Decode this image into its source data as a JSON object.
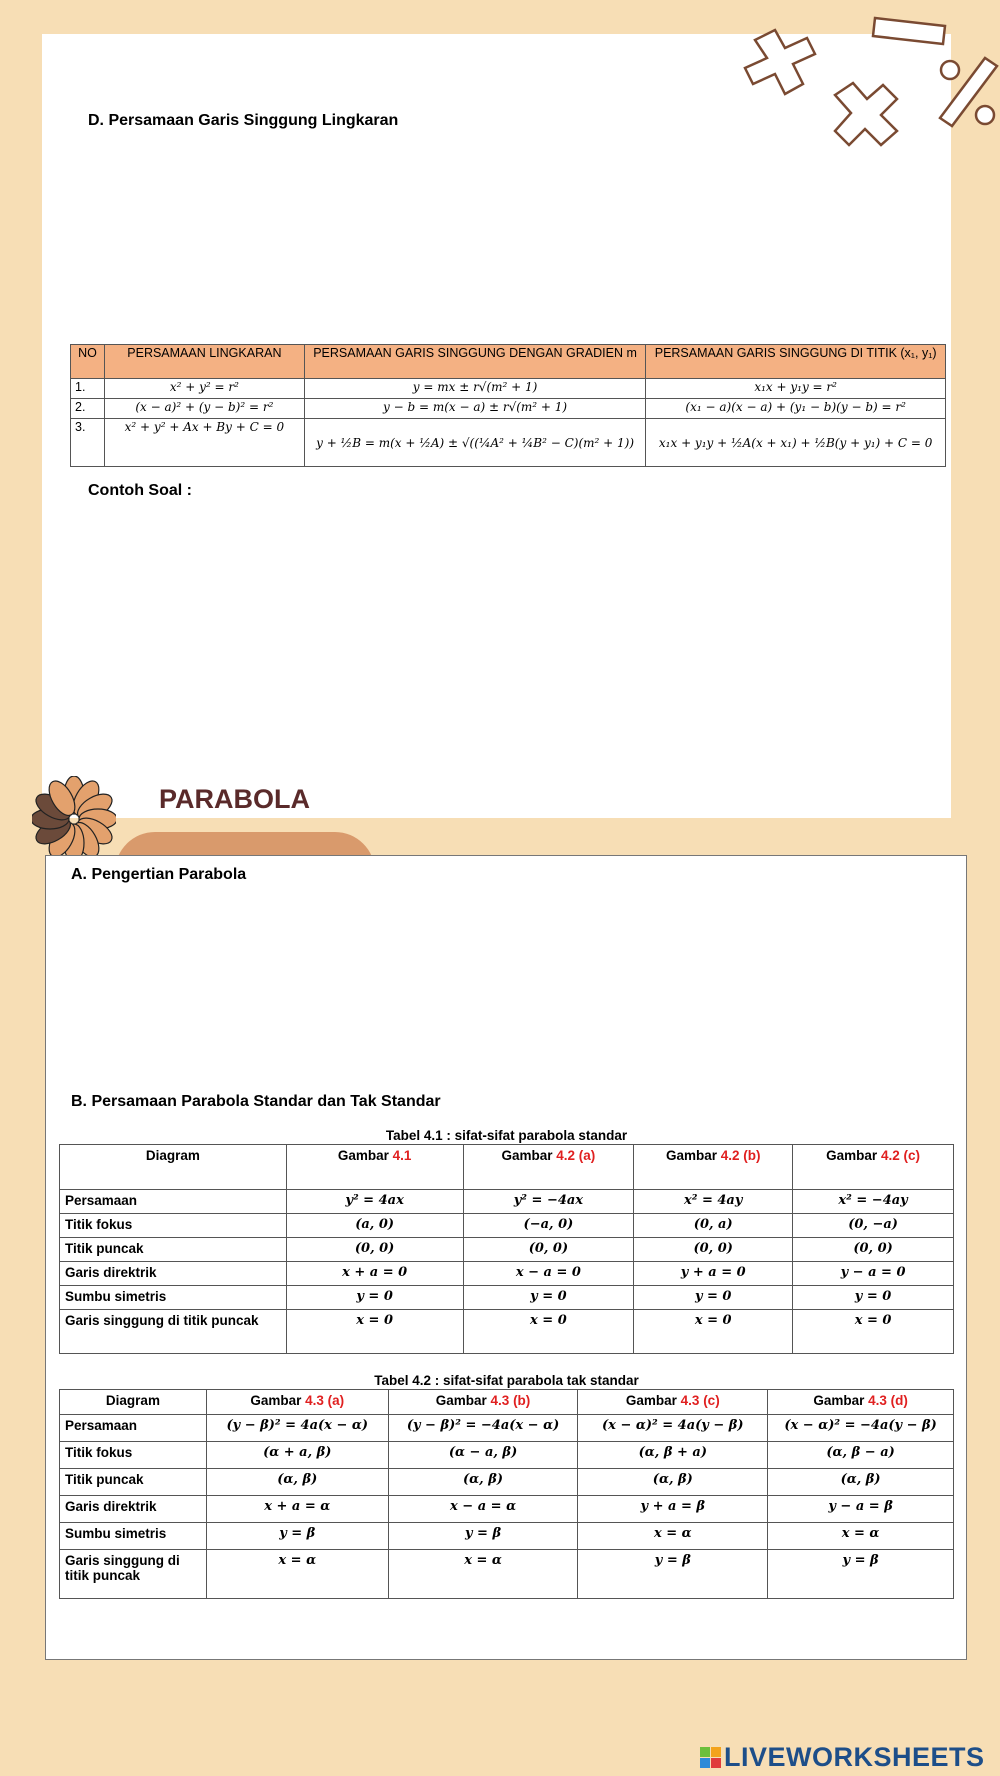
{
  "section_d": {
    "title": "D. Persamaan Garis Singgung Lingkaran",
    "table": {
      "headers": [
        "NO",
        "PERSAMAAN LINGKARAN",
        "PERSAMAAN GARIS SINGGUNG DENGAN GRADIEN m",
        "PERSAMAAN GARIS SINGGUNG DI TITIK (x₁, y₁)"
      ],
      "rows": [
        [
          "1.",
          "x² + y² = r²",
          "y = mx ± r√(m² + 1)",
          "x₁x + y₁y = r²"
        ],
        [
          "2.",
          "(x − a)² + (y − b)² = r²",
          "y − b = m(x − a) ± r√(m² + 1)",
          "(x₁ − a)(x − a) + (y₁ − b)(y − b) = r²"
        ],
        [
          "3.",
          "x² + y² + Ax + By + C = 0",
          "y + ½B = m(x + ½A) ± √((¼A² + ¼B² − C)(m² + 1))",
          "x₁x + y₁y + ½A(x + x₁) + ½B(y + y₁) + C = 0"
        ]
      ]
    },
    "example_label": "Contoh Soal :"
  },
  "parabola": {
    "title": "PARABOLA",
    "section_a": "A.   Pengertian Parabola",
    "section_b": "B.   Persamaan Parabola Standar dan Tak Standar",
    "table1": {
      "caption": "Tabel 4.1 : sifat-sifat parabola standar",
      "headers": [
        {
          "t": "Diagram",
          "r": ""
        },
        {
          "t": "Gambar ",
          "r": "4.1"
        },
        {
          "t": "Gambar ",
          "r": "4.2 (a)"
        },
        {
          "t": "Gambar ",
          "r": "4.2 (b)"
        },
        {
          "t": "Gambar ",
          "r": "4.2 (c)"
        }
      ],
      "rows": [
        [
          "Persamaan",
          "y² = 4ax",
          "y² = −4ax",
          "x² = 4ay",
          "x² = −4ay"
        ],
        [
          "Titik fokus",
          "(a, 0)",
          "(−a, 0)",
          "(0, a)",
          "(0, −a)"
        ],
        [
          "Titik puncak",
          "(0, 0)",
          "(0, 0)",
          "(0, 0)",
          "(0, 0)"
        ],
        [
          "Garis direktrik",
          "x + a = 0",
          "x − a = 0",
          "y + a = 0",
          "y − a = 0"
        ],
        [
          "Sumbu simetris",
          "y = 0",
          "y = 0",
          "y = 0",
          "y = 0"
        ],
        [
          "Garis singgung di titik puncak",
          "x = 0",
          "x = 0",
          "x = 0",
          "x = 0"
        ]
      ]
    },
    "table2": {
      "caption": "Tabel 4.2 : sifat-sifat parabola tak standar",
      "headers": [
        {
          "t": "Diagram",
          "r": ""
        },
        {
          "t": "Gambar ",
          "r": "4.3 (a)"
        },
        {
          "t": "Gambar ",
          "r": "4.3 (b)"
        },
        {
          "t": "Gambar ",
          "r": "4.3 (c)"
        },
        {
          "t": "Gambar ",
          "r": "4.3 (d)"
        }
      ],
      "rows": [
        [
          "Persamaan",
          "(y − β)² = 4a(x − α)",
          "(y − β)² = −4a(x − α)",
          "(x − α)² = 4a(y − β)",
          "(x − α)² = −4a(y − β)"
        ],
        [
          "Titik fokus",
          "(α + a, β)",
          "(α − a, β)",
          "(α, β + a)",
          "(α, β − a)"
        ],
        [
          "Titik puncak",
          "(α, β)",
          "(α, β)",
          "(α, β)",
          "(α, β)"
        ],
        [
          "Garis direktrik",
          "x + a = α",
          "x − a = α",
          "y + a = β",
          "y − a = β"
        ],
        [
          "Sumbu simetris",
          "y = β",
          "y = β",
          "x = α",
          "x = α"
        ],
        [
          "Garis singgung di titik puncak",
          "x = α",
          "x = α",
          "y = β",
          "y = β"
        ]
      ]
    }
  },
  "logo": {
    "text": "LIVEWORKSHEETS"
  },
  "colors": {
    "background": "#f7deb5",
    "table_header": "#f4b183",
    "accent_red": "#e02020",
    "title_brown": "#5a2a2a",
    "logo_blue": "#1d4e89"
  }
}
